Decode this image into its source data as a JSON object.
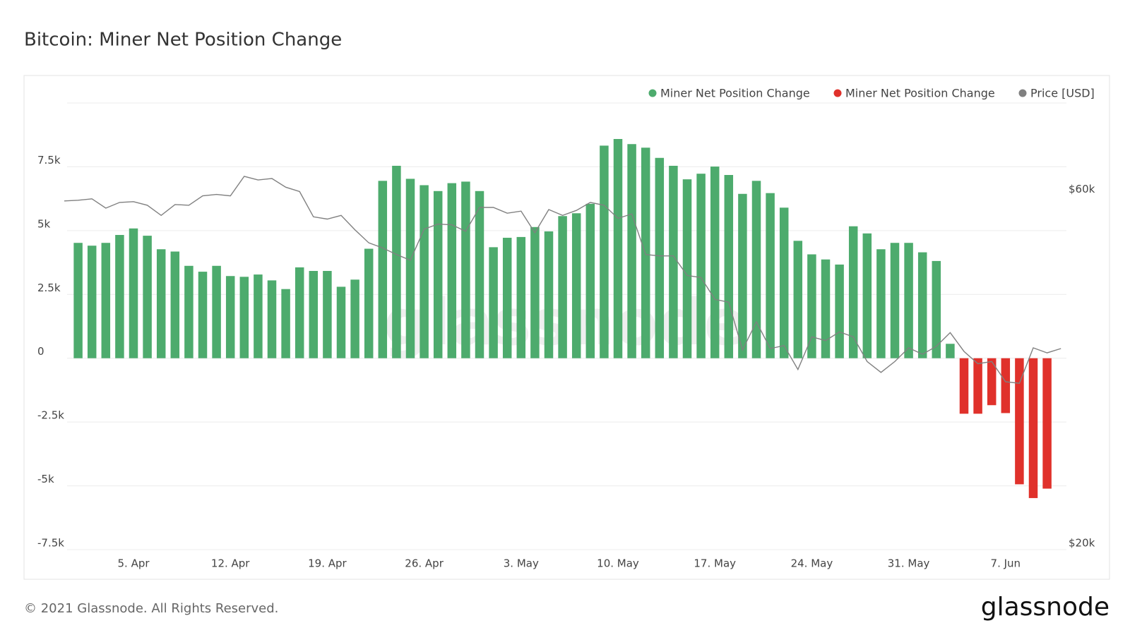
{
  "chart_data": {
    "type": "bar",
    "title": "Bitcoin: Miner Net Position Change",
    "categories": [
      null,
      null,
      null,
      null,
      null,
      "5. Apr",
      null,
      null,
      null,
      null,
      null,
      null,
      "12. Apr",
      null,
      null,
      null,
      null,
      null,
      null,
      "19. Apr",
      null,
      null,
      null,
      null,
      null,
      null,
      "26. Apr",
      null,
      null,
      null,
      null,
      null,
      null,
      "3. May",
      null,
      null,
      null,
      null,
      null,
      null,
      "10. May",
      null,
      null,
      null,
      null,
      null,
      null,
      "17. May",
      null,
      null,
      null,
      null,
      null,
      null,
      "24. May",
      null,
      null,
      null,
      null,
      null,
      null,
      "31. May",
      null,
      null,
      null,
      null,
      null,
      null,
      "7. Jun",
      null,
      null,
      null,
      null
    ],
    "series": [
      {
        "name": "Miner Net Position Change",
        "color": "#4dab6d",
        "values": [
          null,
          4520,
          4410,
          4520,
          4830,
          5085,
          4800,
          4270,
          4180,
          3620,
          3390,
          3620,
          3220,
          3190,
          3280,
          3050,
          2710,
          3560,
          3420,
          3420,
          2800,
          3080,
          4290,
          6950,
          7540,
          7030,
          6780,
          6550,
          6860,
          6920,
          6550,
          4350,
          4720,
          4750,
          5140,
          4970,
          5570,
          5680,
          6050,
          8330,
          8590,
          8390,
          8250,
          7850,
          7540,
          7010,
          7230,
          7510,
          7180,
          6440,
          6950,
          6470,
          5900,
          4600,
          4070,
          3870,
          3670,
          5170,
          4890,
          4270,
          4520,
          4520,
          4150,
          3810,
          565,
          null,
          null,
          null,
          null,
          null,
          null,
          null,
          null
        ]
      },
      {
        "name": "Miner Net Position Change",
        "color": "#e0312b",
        "values": [
          null,
          null,
          null,
          null,
          null,
          null,
          null,
          null,
          null,
          null,
          null,
          null,
          null,
          null,
          null,
          null,
          null,
          null,
          null,
          null,
          null,
          null,
          null,
          null,
          null,
          null,
          null,
          null,
          null,
          null,
          null,
          null,
          null,
          null,
          null,
          null,
          null,
          null,
          null,
          null,
          null,
          null,
          null,
          null,
          null,
          null,
          null,
          null,
          null,
          null,
          null,
          null,
          null,
          null,
          null,
          null,
          null,
          null,
          null,
          null,
          null,
          null,
          null,
          null,
          null,
          -2175,
          -2175,
          -1840,
          -2150,
          -4940,
          -5480,
          -5110,
          null
        ]
      },
      {
        "name": "Price [USD]",
        "color": "#808080",
        "type": "line",
        "axis": "y2",
        "values": [
          59430,
          59510,
          59670,
          58610,
          59260,
          59350,
          58940,
          57790,
          59020,
          58940,
          60000,
          60160,
          60000,
          62210,
          61800,
          61960,
          60980,
          60490,
          57630,
          57380,
          57790,
          56160,
          54690,
          54110,
          53370,
          52720,
          56240,
          56810,
          56730,
          55990,
          58690,
          58690,
          58040,
          58280,
          55830,
          58450,
          57790,
          58360,
          59260,
          58940,
          57460,
          57960,
          53370,
          53210,
          53210,
          51000,
          50760,
          48300,
          47980,
          42580,
          45770,
          42740,
          43070,
          40370,
          44050,
          43640,
          44620,
          44050,
          41270,
          40040,
          41270,
          42820,
          42090,
          42990,
          44540,
          42410,
          41020,
          41270,
          38980,
          38810,
          42820,
          42250,
          42740
        ]
      }
    ],
    "ylim": [
      -7500,
      10000
    ],
    "yticks": [
      {
        "value": 7500,
        "label": "7.5k"
      },
      {
        "value": 5000,
        "label": "5k"
      },
      {
        "value": 2500,
        "label": "2.5k"
      },
      0,
      {
        "value": -2500,
        "label": "-2.5k"
      },
      {
        "value": -5000,
        "label": "-5k"
      },
      {
        "value": -7500,
        "label": "-7.5k"
      }
    ],
    "y2lim": [
      20000,
      70500
    ],
    "y2ticks": [
      {
        "value": 60000,
        "label": "$60k"
      },
      {
        "value": 20000,
        "label": "$20k"
      }
    ],
    "grid": true,
    "legend": "top-right",
    "watermark": "glassnode"
  },
  "footer": "© 2021 Glassnode. All Rights Reserved.",
  "logo": "glassnode"
}
